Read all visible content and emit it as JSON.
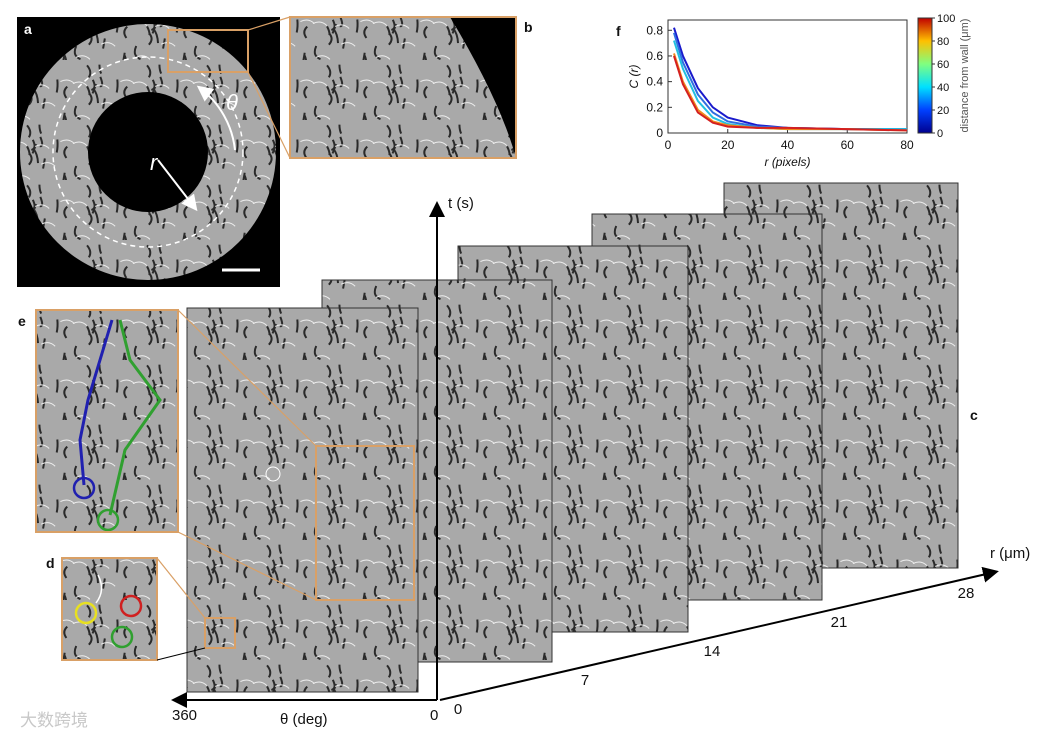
{
  "figure": {
    "panel_labels": {
      "a": "a",
      "b": "b",
      "c": "c",
      "d": "d",
      "e": "e",
      "f": "f"
    },
    "a_theta": "θ",
    "a_r": "r",
    "t_axis": "t (s)",
    "theta_axis": "θ (deg)",
    "theta_ticks": [
      360,
      0
    ],
    "r_axis": "r (μm)",
    "r_ticks": [
      0,
      7,
      14,
      21,
      28
    ],
    "watermark": "大数跨境"
  },
  "chart_data": {
    "type": "line",
    "x": [
      2,
      5,
      10,
      15,
      20,
      30,
      40,
      60,
      80
    ],
    "series": [
      {
        "color": "#1a1acc",
        "values": [
          0.82,
          0.6,
          0.35,
          0.2,
          0.12,
          0.06,
          0.04,
          0.03,
          0.03
        ]
      },
      {
        "color": "#2f6fe0",
        "values": [
          0.78,
          0.55,
          0.3,
          0.16,
          0.09,
          0.05,
          0.04,
          0.03,
          0.03
        ]
      },
      {
        "color": "#22c0e0",
        "values": [
          0.72,
          0.5,
          0.25,
          0.12,
          0.07,
          0.04,
          0.03,
          0.03,
          0.03
        ]
      },
      {
        "color": "#f08a1c",
        "values": [
          0.62,
          0.4,
          0.18,
          0.09,
          0.06,
          0.04,
          0.03,
          0.03,
          0.02
        ]
      },
      {
        "color": "#d42020",
        "values": [
          0.6,
          0.38,
          0.16,
          0.08,
          0.05,
          0.04,
          0.04,
          0.03,
          0.02
        ]
      }
    ],
    "xlim": [
      0,
      80
    ],
    "ylim": [
      0,
      0.88
    ],
    "xticks": [
      0,
      20,
      40,
      60,
      80
    ],
    "yticks": [
      0,
      0.2,
      0.4,
      0.6,
      0.8
    ],
    "xlabel": "r (pixels)",
    "ylabel": "C (r)",
    "colorbar": {
      "label": "distance from wall (μm)",
      "lim": [
        0,
        100
      ],
      "ticks": [
        0,
        20,
        40,
        60,
        80,
        100
      ]
    }
  }
}
